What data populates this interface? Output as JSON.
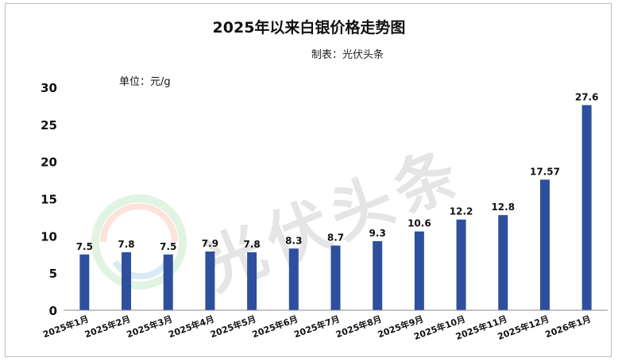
{
  "chart_data": {
    "type": "bar",
    "title": "2025年以来白银价格走势图",
    "subtitle": "制表：光伏头条",
    "unit_label": "单位：元/g",
    "categories": [
      "2025年1月",
      "2025年2月",
      "2025年3月",
      "2025年4月",
      "2025年5月",
      "2025年6月",
      "2025年7月",
      "2025年8月",
      "2025年9月",
      "2025年10月",
      "2025年11月",
      "2025年12月",
      "2026年1月"
    ],
    "values": [
      7.5,
      7.8,
      7.5,
      7.9,
      7.8,
      8.3,
      8.7,
      9.3,
      10.6,
      12.2,
      12.8,
      17.57,
      27.6
    ],
    "value_labels": [
      "7.5",
      "7.8",
      "7.5",
      "7.9",
      "7.8",
      "8.3",
      "8.7",
      "9.3",
      "10.6",
      "12.2",
      "12.8",
      "17.57",
      "27.6"
    ],
    "ylim": [
      0,
      30
    ],
    "yticks": [
      "0",
      "5",
      "10",
      "15",
      "20",
      "25",
      "30"
    ],
    "grid": false,
    "bar_color": "#2d4f9e"
  },
  "watermark": {
    "text": "光伏头条"
  }
}
